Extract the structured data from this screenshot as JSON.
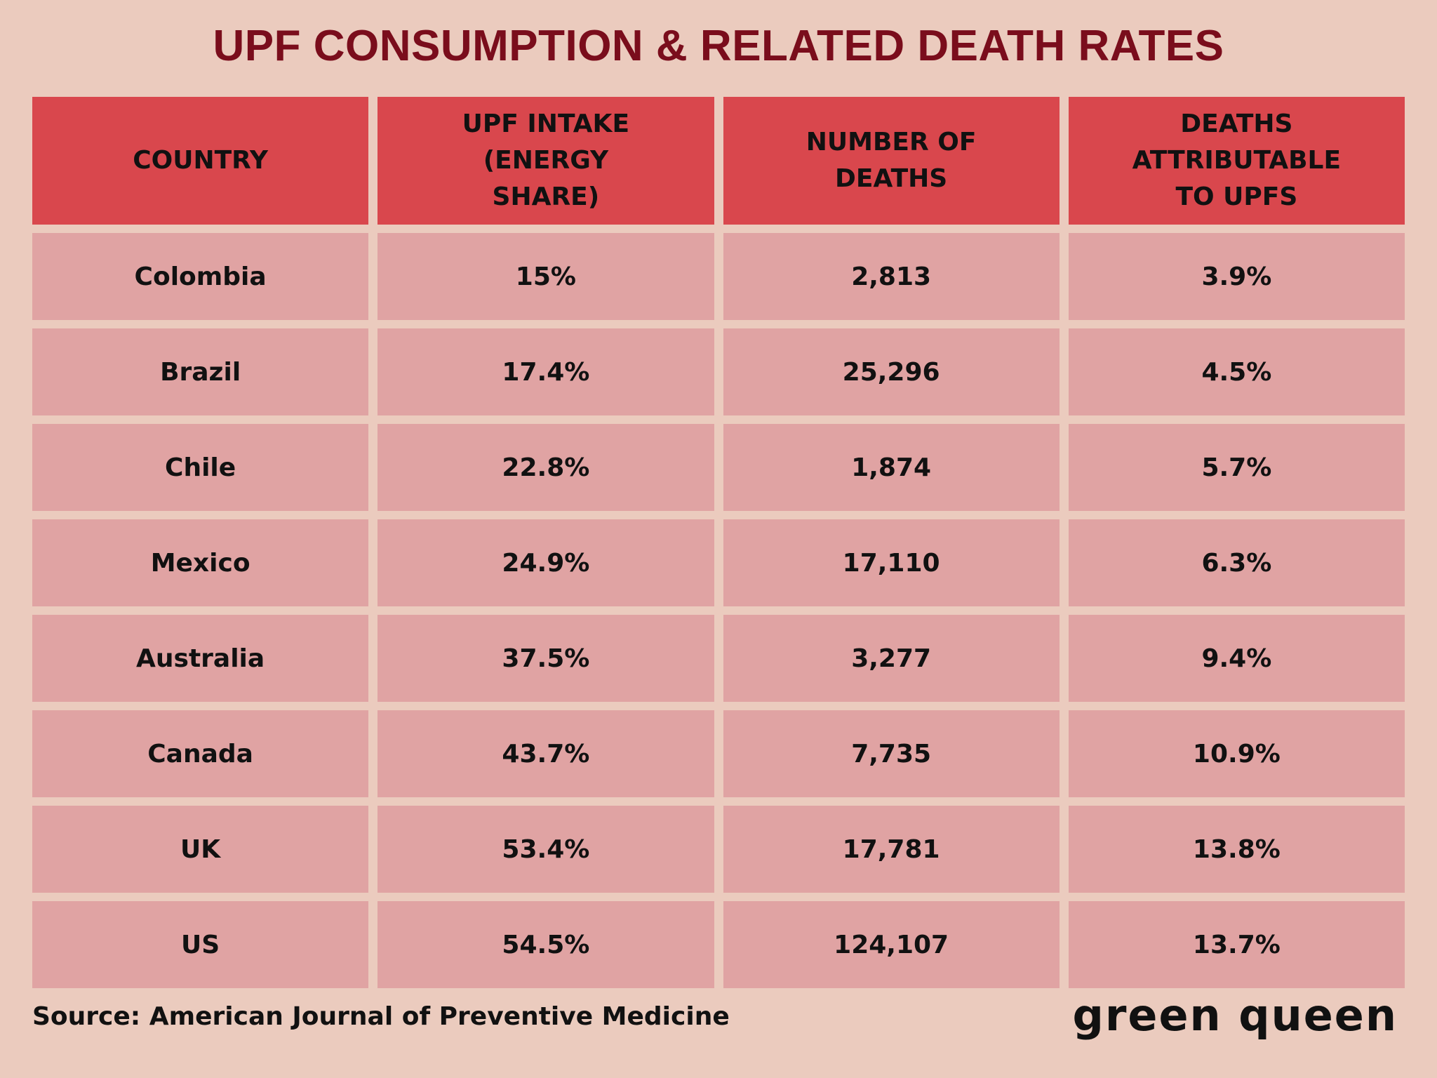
{
  "header": {
    "title": "UPF CONSUMPTION & RELATED DEATH RATES"
  },
  "table": {
    "columns": [
      "COUNTRY",
      "UPF INTAKE (ENERGY SHARE)",
      "NUMBER OF DEATHS",
      "DEATHS ATTRIBUTABLE TO UPFS"
    ],
    "rows": [
      [
        "Colombia",
        "15%",
        "2,813",
        "3.9%"
      ],
      [
        "Brazil",
        "17.4%",
        "25,296",
        "4.5%"
      ],
      [
        "Chile",
        "22.8%",
        "1,874",
        "5.7%"
      ],
      [
        "Mexico",
        "24.9%",
        "17,110",
        "6.3%"
      ],
      [
        "Australia",
        "37.5%",
        "3,277",
        "9.4%"
      ],
      [
        "Canada",
        "43.7%",
        "7,735",
        "10.9%"
      ],
      [
        "UK",
        "53.4%",
        "17,781",
        "13.8%"
      ],
      [
        "US",
        "54.5%",
        "124,107",
        "13.7%"
      ]
    ]
  },
  "footer": {
    "source": "Source: American Journal of Preventive Medicine",
    "brand": "green queen"
  }
}
